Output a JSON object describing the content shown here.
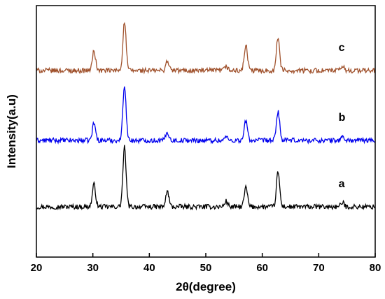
{
  "chart_data": {
    "type": "line",
    "title": "",
    "xlabel": "2θ(degree)",
    "ylabel": "Intensity(a.u)",
    "xlim": [
      20,
      80
    ],
    "xticks": [
      20,
      30,
      40,
      50,
      60,
      70,
      80
    ],
    "yticks": [],
    "grid": false,
    "legend": "none",
    "series": [
      {
        "name": "a",
        "color": "#000000",
        "offset": 0.0,
        "peaks": [
          {
            "x": 30.2,
            "h": 0.32
          },
          {
            "x": 35.6,
            "h": 0.85
          },
          {
            "x": 43.2,
            "h": 0.22
          },
          {
            "x": 53.6,
            "h": 0.08
          },
          {
            "x": 57.1,
            "h": 0.28
          },
          {
            "x": 62.8,
            "h": 0.5
          },
          {
            "x": 74.2,
            "h": 0.06
          }
        ]
      },
      {
        "name": "b",
        "color": "#0000ee",
        "offset": 0.95,
        "peaks": [
          {
            "x": 30.2,
            "h": 0.25
          },
          {
            "x": 35.6,
            "h": 0.8
          },
          {
            "x": 43.2,
            "h": 0.12
          },
          {
            "x": 53.6,
            "h": 0.05
          },
          {
            "x": 57.1,
            "h": 0.28
          },
          {
            "x": 62.8,
            "h": 0.42
          },
          {
            "x": 74.2,
            "h": 0.05
          }
        ]
      },
      {
        "name": "c",
        "color": "#a0522d",
        "offset": 1.95,
        "peaks": [
          {
            "x": 30.2,
            "h": 0.28
          },
          {
            "x": 35.6,
            "h": 0.7
          },
          {
            "x": 43.2,
            "h": 0.14
          },
          {
            "x": 53.6,
            "h": 0.06
          },
          {
            "x": 57.1,
            "h": 0.36
          },
          {
            "x": 62.8,
            "h": 0.48
          },
          {
            "x": 74.2,
            "h": 0.06
          }
        ]
      }
    ]
  }
}
